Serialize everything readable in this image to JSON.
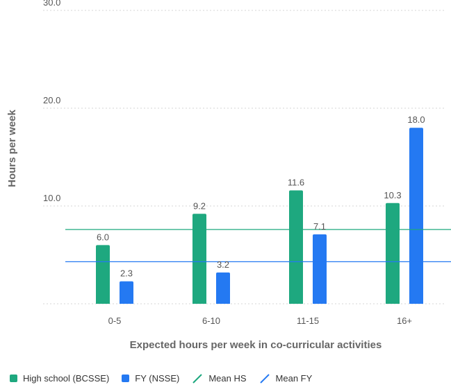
{
  "chart_data": {
    "type": "bar",
    "title": "",
    "xlabel": "Expected hours per week in co-curricular activities",
    "ylabel": "Hours per week",
    "ylim": [
      0,
      30
    ],
    "yticks": [
      "30.0",
      "20.0",
      "10.0"
    ],
    "grid": true,
    "legend_position": "bottom-left",
    "categories": [
      "0-5",
      "6-10",
      "11-15",
      "16+"
    ],
    "series": [
      {
        "name": "High school (BCSSE)",
        "color": "#1ea87f",
        "values": [
          6.0,
          9.2,
          11.6,
          10.3
        ],
        "labels": [
          "6.0",
          "9.2",
          "11.6",
          "10.3"
        ]
      },
      {
        "name": "FY (NSSE)",
        "color": "#2479f2",
        "values": [
          2.3,
          3.2,
          7.1,
          18.0
        ],
        "labels": [
          "2.3",
          "3.2",
          "7.1",
          "18.0"
        ]
      }
    ],
    "reference_lines": [
      {
        "name": "Mean HS",
        "color": "#1ea87f",
        "value": 7.6
      },
      {
        "name": "Mean FY",
        "color": "#2479f2",
        "value": 4.3
      }
    ]
  }
}
